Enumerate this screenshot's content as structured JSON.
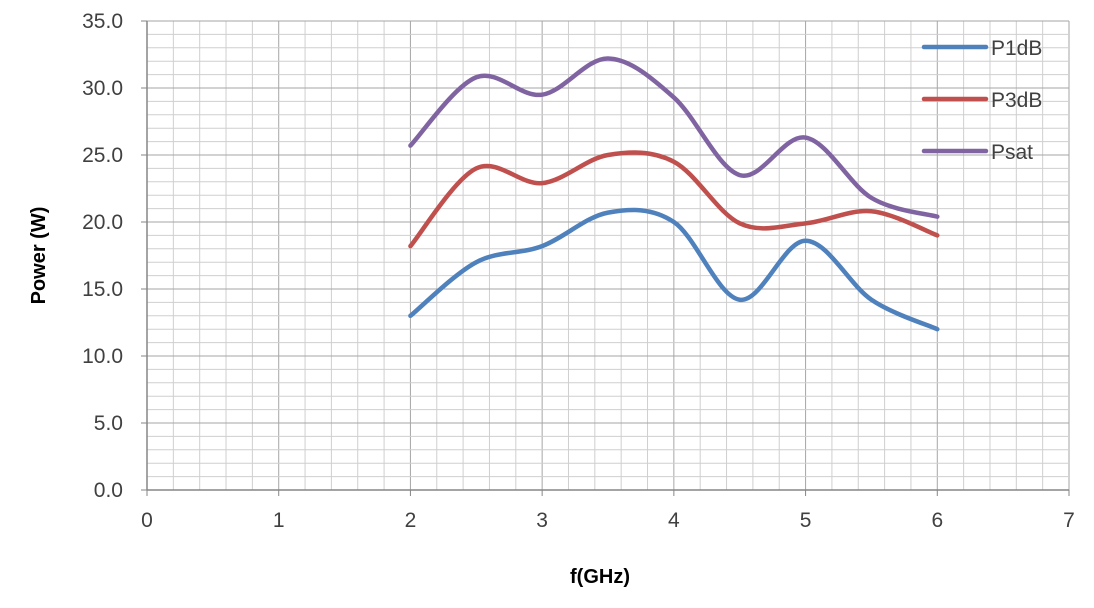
{
  "chart_data": {
    "type": "line",
    "xlabel": "f(GHz)",
    "ylabel": "Power (W)",
    "xlim": [
      0,
      7
    ],
    "ylim": [
      0,
      35
    ],
    "x_ticks": [
      0,
      1,
      2,
      3,
      4,
      5,
      6,
      7
    ],
    "y_ticks": [
      "0.0",
      "5.0",
      "10.0",
      "15.0",
      "20.0",
      "25.0",
      "30.0",
      "35.0"
    ],
    "grid": true,
    "legend_position": "top-right",
    "series": [
      {
        "name": "P1dB",
        "color": "#4f81bd",
        "x": [
          2,
          2.5,
          3,
          3.5,
          4,
          4.5,
          5,
          5.5,
          6
        ],
        "y": [
          13.0,
          17.0,
          18.2,
          20.7,
          20.0,
          14.2,
          18.6,
          14.2,
          12.0
        ]
      },
      {
        "name": "P3dB",
        "color": "#c0504d",
        "x": [
          2,
          2.5,
          3,
          3.5,
          4,
          4.5,
          5,
          5.5,
          6
        ],
        "y": [
          18.2,
          24.0,
          22.9,
          25.0,
          24.5,
          19.9,
          19.9,
          20.8,
          19.0
        ]
      },
      {
        "name": "Psat",
        "color": "#8064a2",
        "x": [
          2,
          2.5,
          3,
          3.5,
          4,
          4.5,
          5,
          5.5,
          6
        ],
        "y": [
          25.7,
          30.8,
          29.5,
          32.2,
          29.3,
          23.5,
          26.3,
          21.8,
          20.4
        ]
      }
    ]
  }
}
